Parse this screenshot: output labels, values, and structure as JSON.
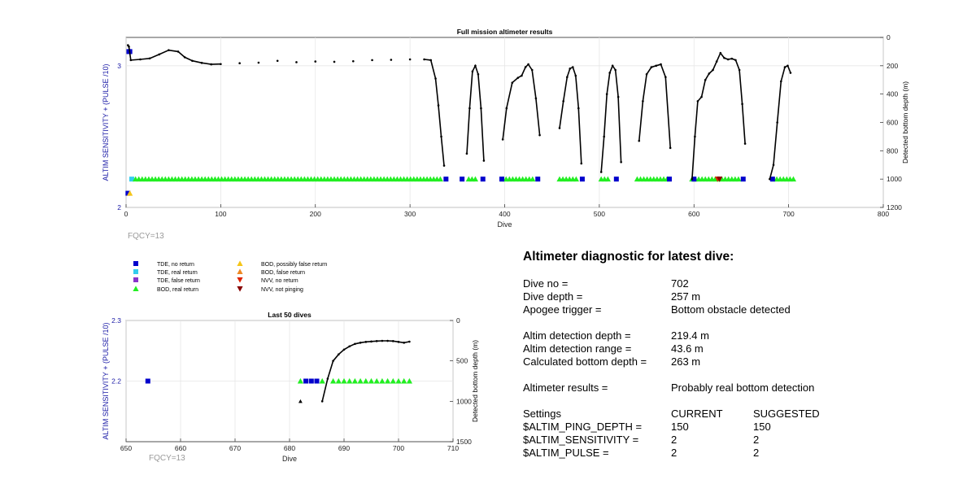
{
  "full_mission_label": "FQCY=13",
  "last50_label": "FQCY=13",
  "legend": [
    {
      "label": "TDE, no return",
      "marker": "square",
      "color": "#0000cc"
    },
    {
      "label": "TDE, real return",
      "marker": "square",
      "color": "#33ccee"
    },
    {
      "label": "TDE, false return",
      "marker": "square",
      "color": "#8833cc"
    },
    {
      "label": "BOD, real return",
      "marker": "triangle-up",
      "color": "#22ee22"
    },
    {
      "label": "BOD, possibly false return",
      "marker": "triangle-up",
      "color": "#f5c518"
    },
    {
      "label": "BOD, false return",
      "marker": "triangle-up",
      "color": "#ee8822"
    },
    {
      "label": "NVV, no return",
      "marker": "triangle-down",
      "color": "#dd2200"
    },
    {
      "label": "NVV, not pinging",
      "marker": "triangle-down",
      "color": "#880000"
    }
  ],
  "diagnostic": {
    "title": "Altimeter diagnostic for latest dive:",
    "dive_no_label": "Dive no =",
    "dive_no": "702",
    "dive_depth_label": "Dive depth =",
    "dive_depth": "257 m",
    "apogee_label": "Apogee trigger =",
    "apogee": "Bottom obstacle detected",
    "altim_depth_label": "Altim detection depth =",
    "altim_depth": "219.4 m",
    "altim_range_label": "Altim detection range =",
    "altim_range": "43.6 m",
    "calc_bottom_label": "Calculated bottom depth =",
    "calc_bottom": "263 m",
    "results_label": "Altimeter results =",
    "results": "Probably real bottom detection",
    "settings_label": "Settings",
    "current_label": "CURRENT",
    "suggested_label": "SUGGESTED",
    "settings": [
      {
        "name": "$ALTIM_PING_DEPTH =",
        "current": "150",
        "suggested": "150"
      },
      {
        "name": "$ALTIM_SENSITIVITY =",
        "current": "2",
        "suggested": "2"
      },
      {
        "name": "$ALTIM_PULSE =",
        "current": "2",
        "suggested": "2"
      }
    ]
  },
  "chart_data": [
    {
      "type": "scatter",
      "title": "Full mission altimeter results",
      "xlabel": "Dive",
      "ylabel": "ALTIM SENSITIVITY + (PULSE /10)",
      "y2label": "Detected bottom depth (m)",
      "xlim": [
        0,
        800
      ],
      "ylim": [
        2,
        3.2
      ],
      "y2lim": [
        0,
        1200
      ],
      "y2_reversed": true,
      "xticks": [
        0,
        100,
        200,
        300,
        400,
        500,
        600,
        700,
        800
      ],
      "yticks": [
        2,
        3
      ],
      "y2ticks": [
        0,
        200,
        400,
        600,
        800,
        1000,
        1200
      ],
      "grid": true,
      "depth_series": [
        [
          2,
          55
        ],
        [
          3,
          65
        ],
        [
          5,
          160
        ],
        [
          15,
          155
        ],
        [
          25,
          148
        ],
        [
          35,
          120
        ],
        [
          45,
          90
        ],
        [
          55,
          100
        ],
        [
          62,
          140
        ],
        [
          70,
          165
        ],
        [
          80,
          180
        ],
        [
          90,
          190
        ],
        [
          100,
          188
        ],
        [
          120,
          182
        ],
        [
          140,
          178
        ],
        [
          160,
          165
        ],
        [
          180,
          175
        ],
        [
          200,
          170
        ],
        [
          220,
          172
        ],
        [
          240,
          168
        ],
        [
          260,
          160
        ],
        [
          280,
          158
        ],
        [
          300,
          155
        ],
        [
          315,
          155
        ],
        [
          322,
          160
        ],
        [
          327,
          290
        ],
        [
          330,
          480
        ],
        [
          333,
          700
        ],
        [
          336,
          905
        ],
        [
          360,
          820
        ],
        [
          363,
          500
        ],
        [
          366,
          240
        ],
        [
          369,
          200
        ],
        [
          372,
          260
        ],
        [
          375,
          500
        ],
        [
          378,
          870
        ],
        [
          398,
          720
        ],
        [
          402,
          500
        ],
        [
          408,
          320
        ],
        [
          414,
          285
        ],
        [
          418,
          270
        ],
        [
          422,
          210
        ],
        [
          425,
          190
        ],
        [
          429,
          230
        ],
        [
          433,
          430
        ],
        [
          437,
          690
        ],
        [
          458,
          640
        ],
        [
          462,
          450
        ],
        [
          466,
          280
        ],
        [
          469,
          220
        ],
        [
          472,
          210
        ],
        [
          475,
          270
        ],
        [
          478,
          500
        ],
        [
          481,
          890
        ],
        [
          502,
          950
        ],
        [
          505,
          700
        ],
        [
          508,
          400
        ],
        [
          511,
          250
        ],
        [
          514,
          200
        ],
        [
          517,
          230
        ],
        [
          520,
          420
        ],
        [
          523,
          880
        ],
        [
          542,
          730
        ],
        [
          546,
          450
        ],
        [
          550,
          260
        ],
        [
          555,
          210
        ],
        [
          560,
          200
        ],
        [
          565,
          190
        ],
        [
          570,
          280
        ],
        [
          575,
          780
        ],
        [
          598,
          1000
        ],
        [
          601,
          700
        ],
        [
          604,
          450
        ],
        [
          608,
          420
        ],
        [
          612,
          300
        ],
        [
          616,
          255
        ],
        [
          620,
          230
        ],
        [
          624,
          170
        ],
        [
          628,
          110
        ],
        [
          632,
          145
        ],
        [
          636,
          155
        ],
        [
          640,
          150
        ],
        [
          644,
          160
        ],
        [
          648,
          230
        ],
        [
          651,
          470
        ],
        [
          654,
          750
        ],
        [
          680,
          1000
        ],
        [
          684,
          900
        ],
        [
          688,
          600
        ],
        [
          692,
          310
        ],
        [
          696,
          210
        ],
        [
          699,
          200
        ],
        [
          702,
          250
        ]
      ],
      "altim_value": 2.2,
      "markers": [
        {
          "type": "square",
          "color": "#0000cc",
          "axis": "left",
          "points": [
            [
              3,
              3.1
            ],
            [
              4,
              3.1
            ]
          ]
        },
        {
          "type": "square",
          "color": "#0000cc",
          "axis": "left",
          "points": [
            [
              2,
              2.1
            ]
          ]
        },
        {
          "type": "triangle-up",
          "color": "#f5c518",
          "axis": "left",
          "points": [
            [
              4,
              2.1
            ]
          ]
        },
        {
          "type": "square",
          "color": "#33ccee",
          "axis": "left",
          "points": [
            [
              6,
              2.2
            ]
          ]
        },
        {
          "type": "triangle-up",
          "color": "#22ee22",
          "axis": "left",
          "ranges": [
            [
              10,
              335
            ],
            [
              362,
              370
            ],
            [
              398,
              430
            ],
            [
              458,
              476
            ],
            [
              502,
              512
            ],
            [
              540,
              572
            ],
            [
              598,
              650
            ],
            [
              684,
              705
            ]
          ],
          "step": 3.5
        },
        {
          "type": "square",
          "color": "#0000cc",
          "axis": "left",
          "points": [
            [
              338,
              2.2
            ],
            [
              355,
              2.2
            ],
            [
              377,
              2.2
            ],
            [
              397,
              2.2
            ],
            [
              435,
              2.2
            ],
            [
              482,
              2.2
            ],
            [
              518,
              2.2
            ],
            [
              574,
              2.2
            ],
            [
              600,
              2.2
            ],
            [
              652,
              2.2
            ],
            [
              683,
              2.2
            ]
          ]
        },
        {
          "type": "triangle-down",
          "color": "#dd2200",
          "axis": "left",
          "points": [
            [
              625,
              2.2
            ]
          ]
        },
        {
          "type": "triangle-down",
          "color": "#880000",
          "axis": "left",
          "points": [
            [
              627,
              2.2
            ]
          ]
        }
      ]
    },
    {
      "type": "scatter",
      "title": "Last 50 dives",
      "xlabel": "Dive",
      "ylabel": "ALTIM SENSITIVITY + (PULSE /10)",
      "y2label": "Detected bottom depth (m)",
      "xlim": [
        650,
        710
      ],
      "ylim": [
        2.1,
        2.3
      ],
      "y2lim": [
        0,
        1500
      ],
      "y2_reversed": true,
      "xticks": [
        650,
        660,
        670,
        680,
        690,
        700,
        710
      ],
      "yticks": [
        2.2,
        2.3
      ],
      "y2ticks": [
        0,
        500,
        1000,
        1500
      ],
      "grid": true,
      "depth_series": [
        [
          686,
          1000
        ],
        [
          687,
          720
        ],
        [
          688,
          500
        ],
        [
          689,
          420
        ],
        [
          690,
          360
        ],
        [
          691,
          320
        ],
        [
          692,
          290
        ],
        [
          693,
          275
        ],
        [
          694,
          265
        ],
        [
          695,
          260
        ],
        [
          696,
          255
        ],
        [
          697,
          252
        ],
        [
          698,
          252
        ],
        [
          699,
          255
        ],
        [
          700,
          265
        ],
        [
          701,
          275
        ],
        [
          702,
          262
        ]
      ],
      "depth_points_extra": [
        [
          682,
          1000
        ]
      ],
      "markers": [
        {
          "type": "square",
          "color": "#0000cc",
          "axis": "left",
          "points": [
            [
              654,
              2.2
            ],
            [
              683,
              2.2
            ],
            [
              684,
              2.2
            ],
            [
              685,
              2.2
            ]
          ]
        },
        {
          "type": "triangle-up",
          "color": "#22ee22",
          "axis": "left",
          "points": [
            [
              682,
              2.2
            ],
            [
              686,
              2.2
            ],
            [
              688,
              2.2
            ],
            [
              689,
              2.2
            ],
            [
              690,
              2.2
            ],
            [
              691,
              2.2
            ],
            [
              692,
              2.2
            ],
            [
              693,
              2.2
            ],
            [
              694,
              2.2
            ],
            [
              695,
              2.2
            ],
            [
              696,
              2.2
            ],
            [
              697,
              2.2
            ],
            [
              698,
              2.2
            ],
            [
              699,
              2.2
            ],
            [
              700,
              2.2
            ],
            [
              701,
              2.2
            ],
            [
              702,
              2.2
            ]
          ]
        }
      ]
    }
  ]
}
